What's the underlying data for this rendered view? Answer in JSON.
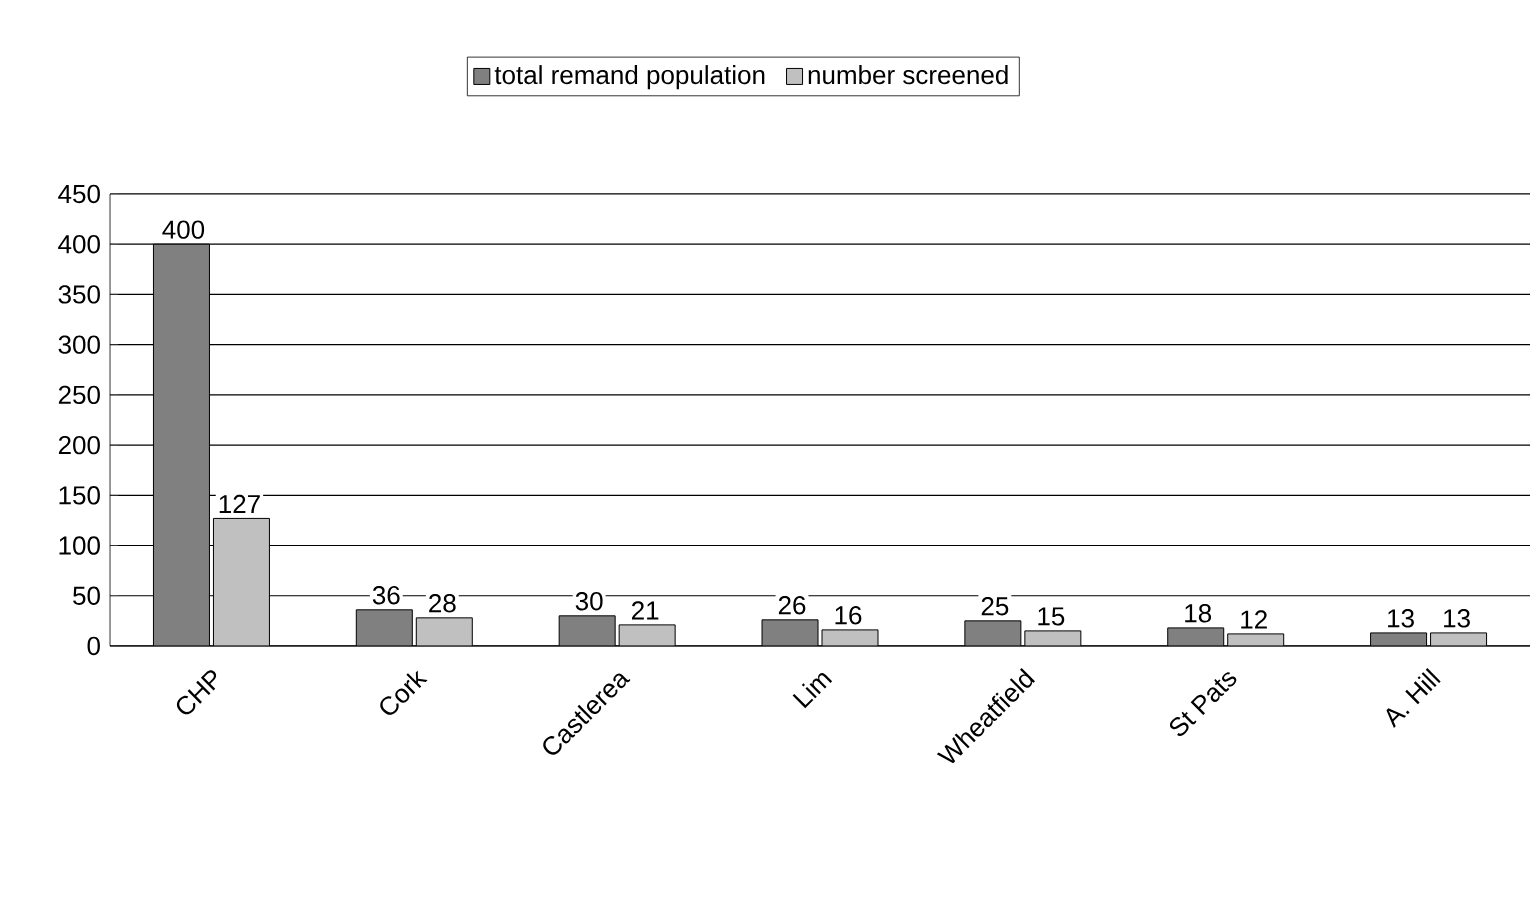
{
  "chart_data": {
    "type": "bar",
    "categories": [
      "CHP",
      "Cork",
      "Castlerea",
      "Lim",
      "Wheatfield",
      "St Pats",
      "A. Hill"
    ],
    "series": [
      {
        "name": "total remand population",
        "color": "#808080",
        "values": [
          400,
          36,
          30,
          26,
          25,
          18,
          13
        ]
      },
      {
        "name": "number screened",
        "color": "#c0c0c0",
        "values": [
          127,
          28,
          21,
          16,
          15,
          12,
          13
        ]
      }
    ],
    "ylim": [
      0,
      450
    ],
    "yticks": [
      0,
      50,
      100,
      150,
      200,
      250,
      300,
      350,
      400,
      450
    ],
    "grid": "y",
    "legend": "top",
    "data_labels": true
  }
}
